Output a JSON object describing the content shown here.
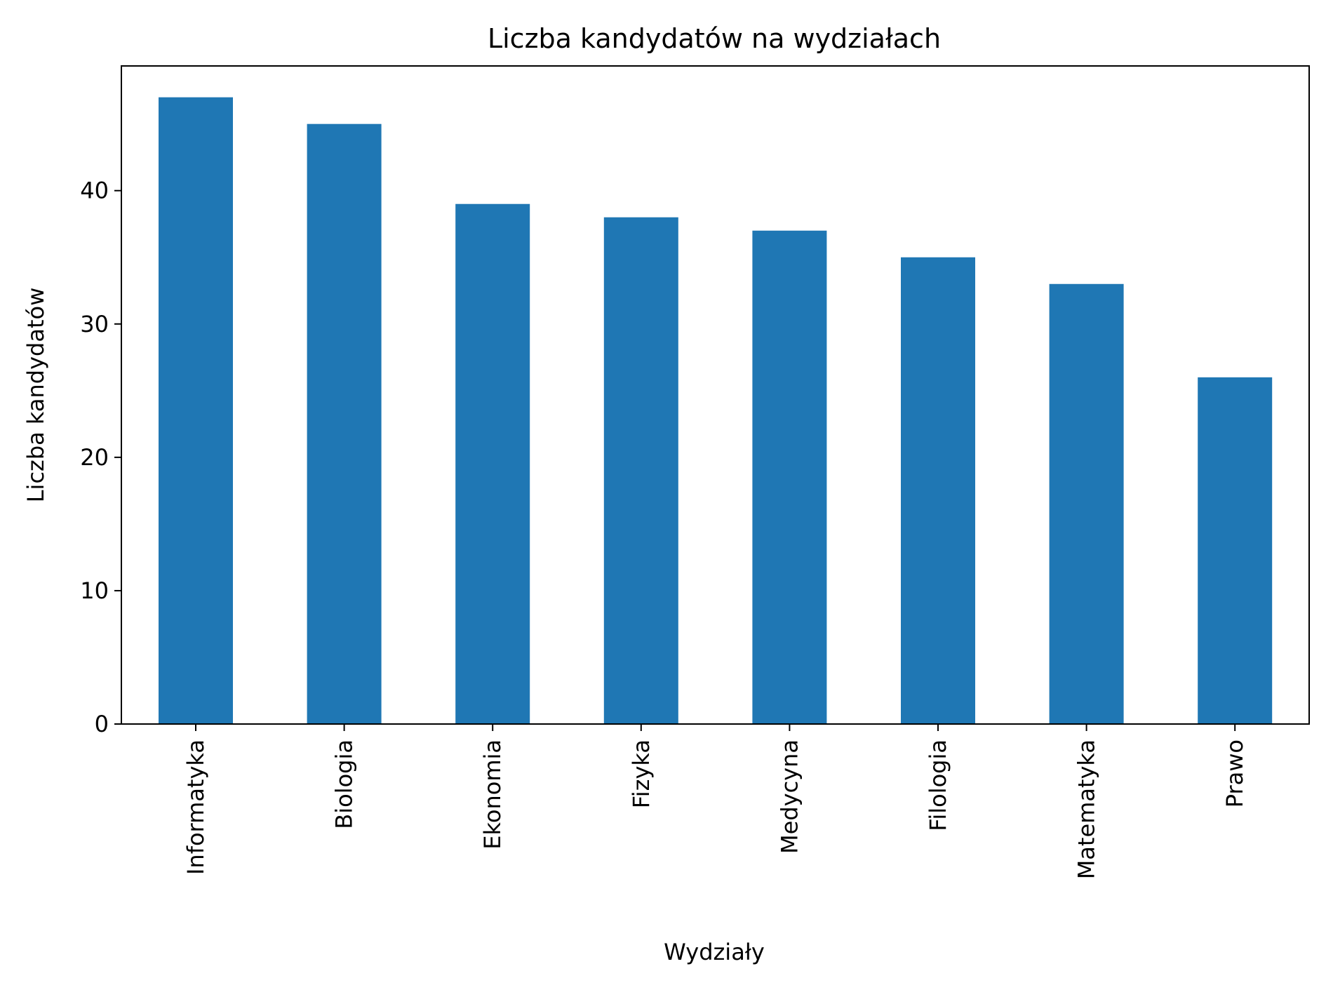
{
  "chart_data": {
    "type": "bar",
    "title": "Liczba kandydatów na wydziałach",
    "xlabel": "Wydziały",
    "ylabel": "Liczba kandydatów",
    "categories": [
      "Informatyka",
      "Biologia",
      "Ekonomia",
      "Fizyka",
      "Medycyna",
      "Filologia",
      "Matematyka",
      "Prawo"
    ],
    "values": [
      47,
      45,
      39,
      38,
      37,
      35,
      33,
      26
    ],
    "ylim": [
      0,
      49.35
    ],
    "yticks": [
      0,
      10,
      20,
      30,
      40
    ],
    "bar_color": "#1f77b4",
    "grid": false,
    "legend": "none"
  }
}
